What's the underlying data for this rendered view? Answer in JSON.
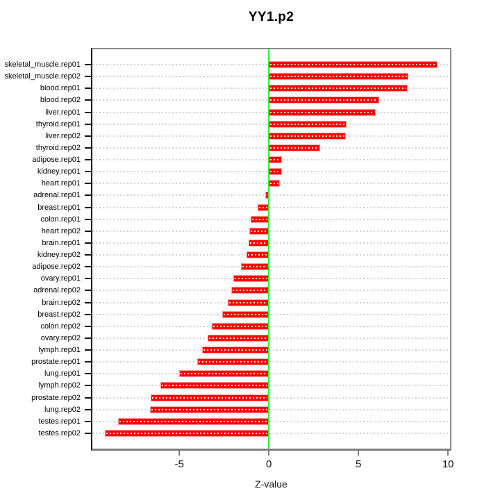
{
  "chart_data": {
    "type": "bar",
    "orientation": "horizontal",
    "title": "YY1.p2",
    "xlabel": "Z-value",
    "xlim": [
      -9.85,
      10.11
    ],
    "xticks": [
      -5,
      0,
      5,
      10
    ],
    "grid": "dotted-horizontal",
    "legend": "none",
    "zero_line": 0,
    "categories": [
      "skeletal_muscle.rep01",
      "skeletal_muscle.rep02",
      "blood.rep01",
      "blood.rep02",
      "liver.rep01",
      "thyroid.rep01",
      "liver.rep02",
      "thyroid.rep02",
      "adipose.rep01",
      "kidney.rep01",
      "heart.rep01",
      "adrenal.rep01",
      "breast.rep01",
      "colon.rep01",
      "heart.rep02",
      "brain.rep01",
      "kidney.rep02",
      "adipose.rep02",
      "ovary.rep01",
      "adrenal.rep02",
      "brain.rep02",
      "breast.rep02",
      "colon.rep02",
      "ovary.rep02",
      "lymph.rep01",
      "prostate.rep01",
      "lung.rep01",
      "lymph.rep02",
      "prostate.rep02",
      "lung.rep02",
      "testes.rep01",
      "testes.rep02"
    ],
    "values": [
      9.4,
      7.8,
      7.75,
      6.15,
      5.95,
      4.35,
      4.3,
      2.85,
      0.75,
      0.73,
      0.63,
      -0.2,
      -0.62,
      -1.0,
      -1.1,
      -1.12,
      -1.25,
      -1.55,
      -2.0,
      -2.1,
      -2.3,
      -2.6,
      -3.2,
      -3.4,
      -3.72,
      -4.0,
      -5.0,
      -6.05,
      -6.6,
      -6.65,
      -8.4,
      -9.15
    ],
    "colors": {
      "bar": "#FF0000",
      "bar_edge": "#FF9999",
      "zero_line": "#33EE33",
      "grid_dots": "#D2D2D2",
      "axis_box": "#8A8A8A",
      "y_axis_line": "#1A1A1A",
      "text": "#000000"
    }
  }
}
